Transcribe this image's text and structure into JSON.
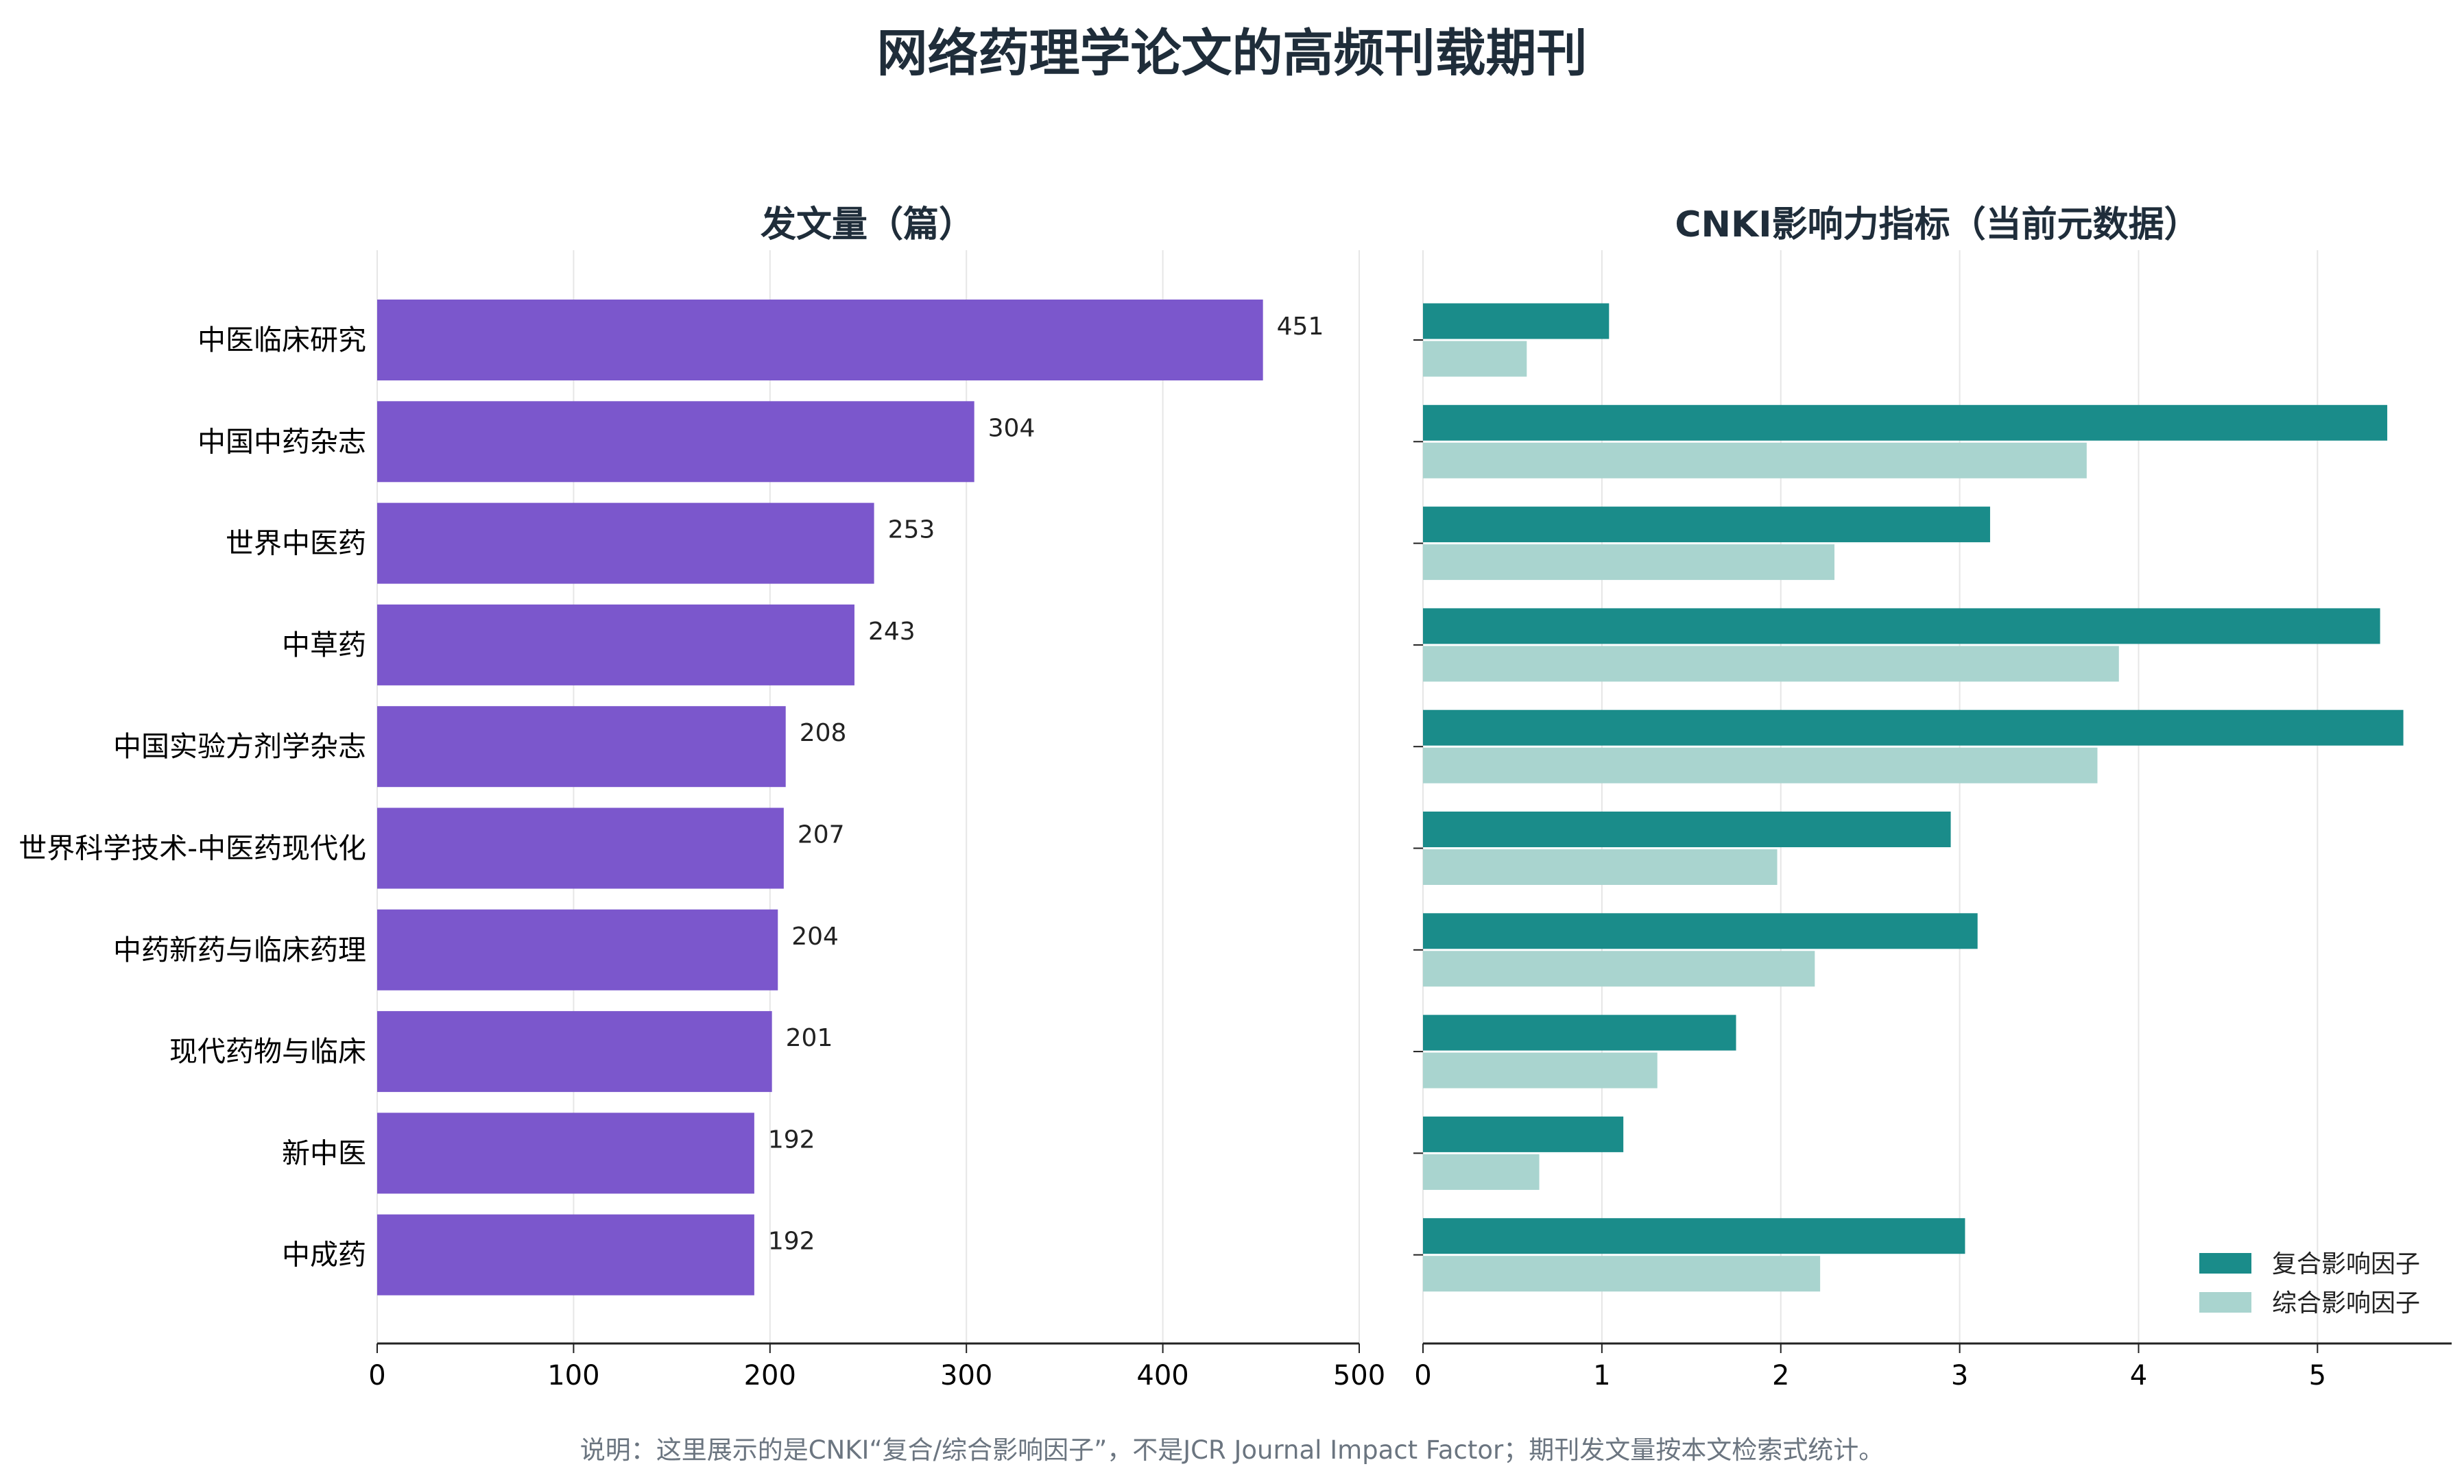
{
  "title": "网络药理学论文的高频刊载期刊",
  "caption": "说明：这里展示的是CNKI“复合/综合影响因子”，不是JCR Journal Impact Factor；期刊发文量按本文检索式统计。",
  "colors": {
    "count_bar": "#7b57cc",
    "composite_if": "#1a8c8a",
    "comprehensive_if": "#a9d4cf",
    "grid": "#e6e6e6",
    "axis": "#222222"
  },
  "chart_data": [
    {
      "type": "bar",
      "orientation": "horizontal",
      "title": "发文量（篇）",
      "categories": [
        "中医临床研究",
        "中国中药杂志",
        "世界中医药",
        "中草药",
        "中国实验方剂学杂志",
        "世界科学技术-中医药现代化",
        "中药新药与临床药理",
        "现代药物与临床",
        "新中医",
        "中成药"
      ],
      "values": [
        451,
        304,
        253,
        243,
        208,
        207,
        204,
        201,
        192,
        192
      ],
      "xlim": [
        0,
        500
      ],
      "xticks": [
        0,
        100,
        200,
        300,
        400,
        500
      ],
      "grid": "vertical"
    },
    {
      "type": "bar",
      "orientation": "horizontal",
      "title": "CNKI影响力指标（当前元数据）",
      "categories": [
        "中医临床研究",
        "中国中药杂志",
        "世界中医药",
        "中草药",
        "中国实验方剂学杂志",
        "世界科学技术-中医药现代化",
        "中药新药与临床药理",
        "现代药物与临床",
        "新中医",
        "中成药"
      ],
      "series": [
        {
          "name": "复合影响因子",
          "values": [
            1.04,
            5.39,
            3.17,
            5.35,
            5.48,
            2.95,
            3.1,
            1.75,
            1.12,
            3.03
          ]
        },
        {
          "name": "综合影响因子",
          "values": [
            0.58,
            3.71,
            2.3,
            3.89,
            3.77,
            1.98,
            2.19,
            1.31,
            0.65,
            2.22
          ]
        }
      ],
      "xlim": [
        0,
        5.75
      ],
      "xticks": [
        0,
        1,
        2,
        3,
        4,
        5
      ],
      "legend": "bottom-right",
      "grid": "vertical"
    }
  ]
}
